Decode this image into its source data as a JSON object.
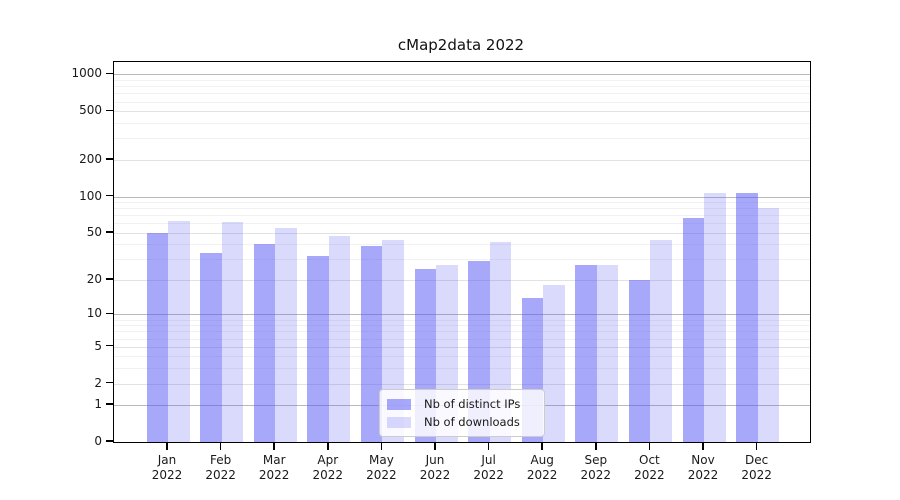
{
  "chart_data": {
    "type": "bar",
    "title": "cMap2data 2022",
    "categories": [
      "Jan",
      "Feb",
      "Mar",
      "Apr",
      "May",
      "Jun",
      "Jul",
      "Aug",
      "Sep",
      "Oct",
      "Nov",
      "Dec"
    ],
    "year_label": "2022",
    "series": [
      {
        "name": "Nb of distinct IPs",
        "color": "#aaaafa",
        "fill": "rgba(88,88,246,0.52)",
        "values": [
          50,
          34,
          40,
          32,
          39,
          25,
          29,
          14,
          27,
          20,
          67,
          106
        ]
      },
      {
        "name": "Nb of downloads",
        "color": "#d9d9fa",
        "fill": "rgba(88,88,246,0.225)",
        "values": [
          63,
          61,
          55,
          47,
          44,
          27,
          42,
          18,
          27,
          44,
          106,
          81
        ]
      }
    ],
    "xlabel": "",
    "ylabel": "",
    "yscale": "log(1+y)",
    "y_ticks": [
      0,
      1,
      2,
      5,
      10,
      20,
      50,
      100,
      200,
      500,
      1000
    ],
    "y_minor_ticks": [
      3,
      4,
      6,
      7,
      8,
      9,
      30,
      40,
      60,
      70,
      80,
      90,
      300,
      400,
      600,
      700,
      800,
      900
    ],
    "ylim": [
      0,
      1270
    ],
    "grid": "horizontal, major and minor",
    "legend_position": "inside lower-center"
  }
}
